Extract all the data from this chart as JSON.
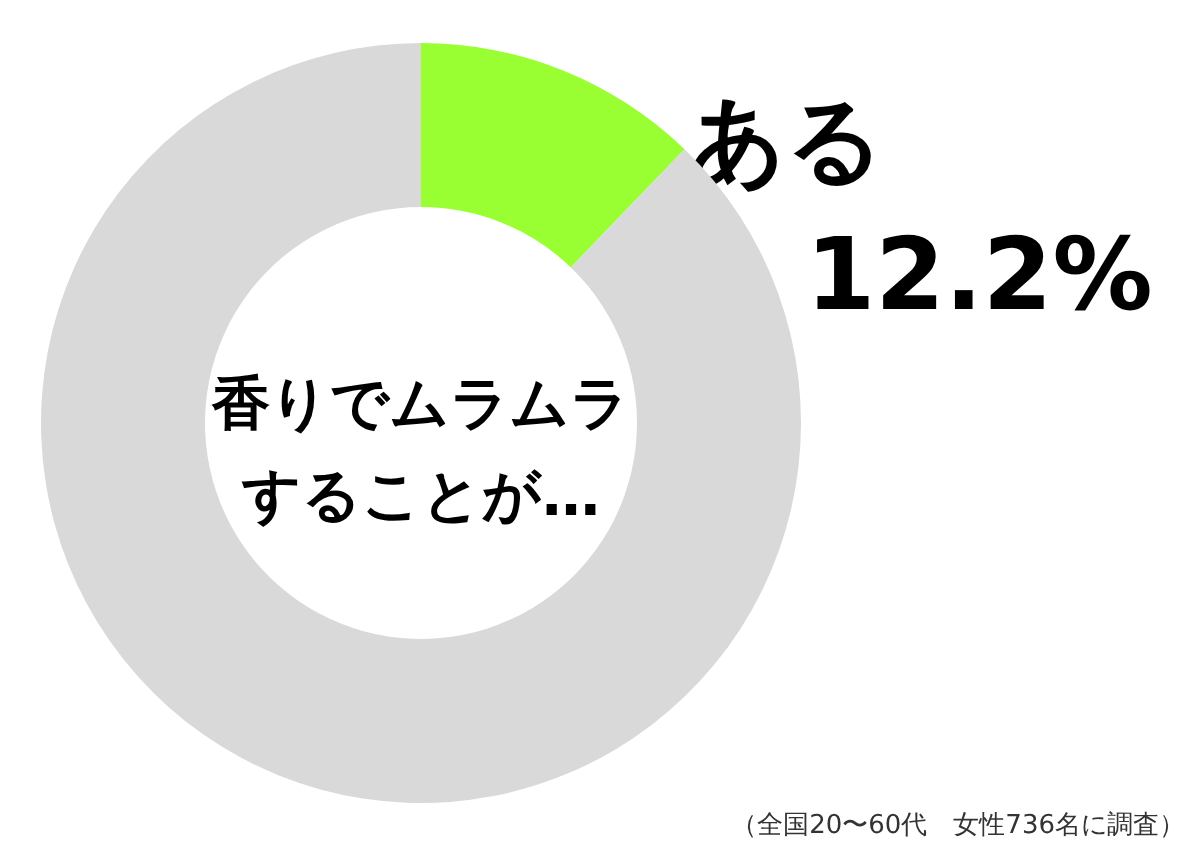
{
  "chart_data": {
    "type": "donut",
    "title": "香りでムラムラ",
    "subtitle": "することが…",
    "categories": [
      "ある",
      null
    ],
    "values": [
      12.2,
      87.8
    ],
    "colors": [
      "#99ff33",
      "#d9d9d9"
    ],
    "value_labels": [
      "12.2%",
      null
    ],
    "annotations": [
      "（全国20〜60代　女性736名に調査）"
    ]
  }
}
